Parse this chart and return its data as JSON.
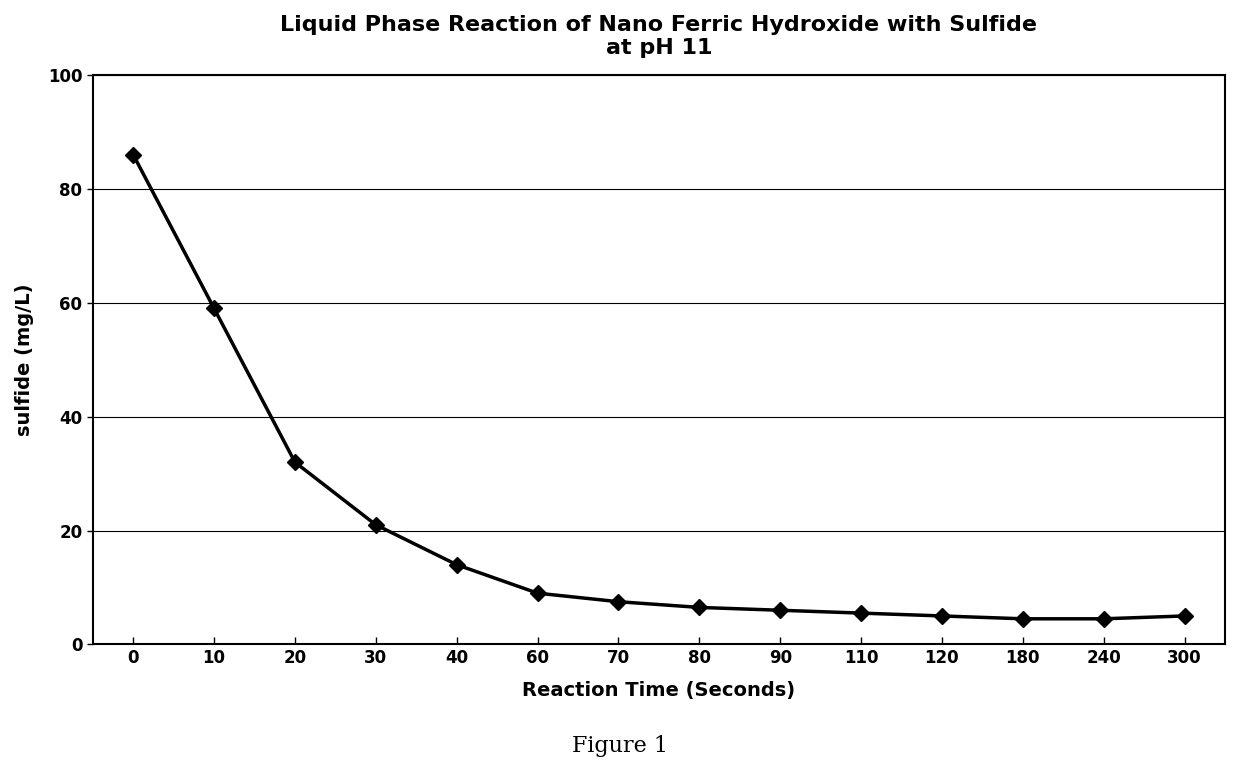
{
  "title_line1": "Liquid Phase Reaction of Nano Ferric Hydroxide with Sulfide",
  "title_line2": "at pH 11",
  "xlabel": "Reaction Time (Seconds)",
  "ylabel": "sulfide (mg/L)",
  "caption": "Figure 1",
  "x_labels": [
    "0",
    "10",
    "20",
    "30",
    "40",
    "60",
    "70",
    "80",
    "90",
    "110",
    "120",
    "180",
    "240",
    "300"
  ],
  "y": [
    86,
    59,
    32,
    21,
    14,
    9,
    7.5,
    6.5,
    6,
    5.5,
    5,
    4.5,
    4.5,
    5
  ],
  "ylim": [
    0,
    100
  ],
  "yticks": [
    0,
    20,
    40,
    60,
    80,
    100
  ],
  "line_color": "#000000",
  "marker": "D",
  "marker_color": "#000000",
  "marker_size": 8,
  "line_width": 2.5,
  "background_color": "#ffffff",
  "plot_bg_color": "#ffffff",
  "grid_color": "#000000",
  "title_fontsize": 16,
  "label_fontsize": 14,
  "tick_fontsize": 12,
  "caption_fontsize": 16,
  "border_color": "#000000"
}
